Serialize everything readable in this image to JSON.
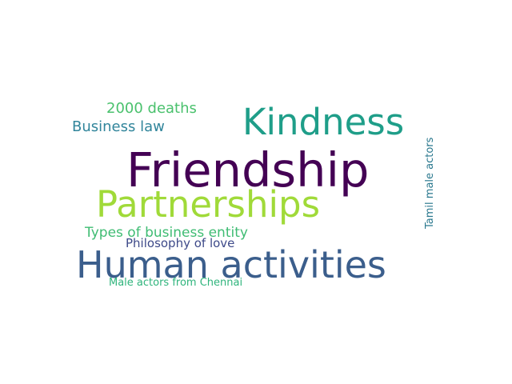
{
  "words": {
    "friendship": {
      "text": "Friendship",
      "color": "#440154"
    },
    "human": {
      "text": "Human activities",
      "color": "#3b5e8c"
    },
    "kindness": {
      "text": "Kindness",
      "color": "#1f9e89"
    },
    "partnerships": {
      "text": "Partnerships",
      "color": "#a0da39"
    },
    "deaths": {
      "text": "2000 deaths",
      "color": "#4ac16d"
    },
    "bizlaw": {
      "text": "Business law",
      "color": "#31859b"
    },
    "types": {
      "text": "Types of business entity",
      "color": "#3fbc73"
    },
    "philo": {
      "text": "Philosophy of love",
      "color": "#3e4a89"
    },
    "male": {
      "text": "Male actors from Chennai",
      "color": "#2fb47c"
    },
    "tamil": {
      "text": "Tamil male actors",
      "color": "#2a788e"
    }
  }
}
